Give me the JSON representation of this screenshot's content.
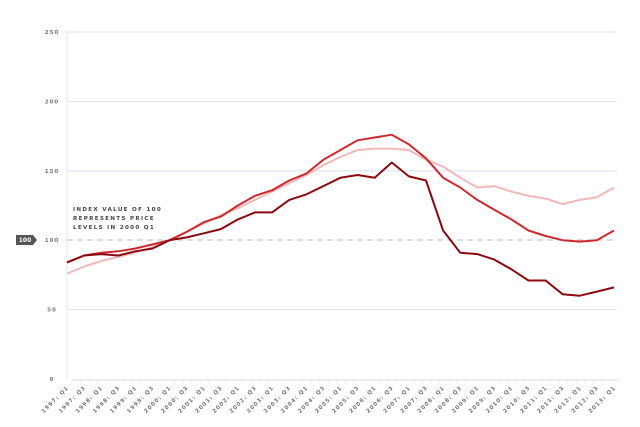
{
  "chart_data": {
    "type": "line",
    "title": "",
    "xlabel": "",
    "ylabel": "",
    "ylim": [
      0,
      250
    ],
    "yticks": [
      "0",
      "50",
      "100",
      "150",
      "200",
      "250"
    ],
    "grid": true,
    "x": [
      "1997: Q1",
      "1997: Q3",
      "1998: Q1",
      "1998: Q3",
      "1999: Q1",
      "1999: Q3",
      "2000: Q1",
      "2000: Q3",
      "2001: Q1",
      "2001: Q3",
      "2002: Q1",
      "2002: Q3",
      "2003: Q1",
      "2003: Q3",
      "2004: Q1",
      "2004: Q3",
      "2005: Q1",
      "2005: Q3",
      "2006: Q1",
      "2006: Q3",
      "2007: Q1",
      "2007: Q3",
      "2008: Q1",
      "2008: Q3",
      "2009: Q1",
      "2009: Q3",
      "2010: Q1",
      "2010: Q3",
      "2011: Q1",
      "2011: Q3",
      "2012: Q1",
      "2012: Q3",
      "2013: Q1"
    ],
    "series": [
      {
        "name": "light",
        "color": "#f2b8b8",
        "values": [
          76,
          81,
          85,
          88,
          91,
          95,
          100,
          106,
          112,
          118,
          123,
          129,
          135,
          141,
          147,
          154,
          160,
          165,
          166,
          166,
          165,
          158,
          153,
          145,
          138,
          139,
          135,
          132,
          130,
          126,
          129,
          131,
          138
        ]
      },
      {
        "name": "medium",
        "color": "#cc2a2e",
        "values": [
          84,
          89,
          91,
          92,
          94,
          97,
          100,
          106,
          113,
          117,
          125,
          132,
          136,
          143,
          148,
          158,
          165,
          172,
          174,
          176,
          169,
          159,
          145,
          138,
          129,
          122,
          115,
          107,
          103,
          100,
          99,
          100,
          107
        ]
      },
      {
        "name": "dark",
        "color": "#8a0a10",
        "values": [
          84,
          89,
          90,
          89,
          92,
          94,
          100,
          102,
          105,
          108,
          115,
          120,
          120,
          129,
          133,
          139,
          145,
          147,
          145,
          156,
          146,
          143,
          107,
          91,
          90,
          86,
          79,
          71,
          71,
          61,
          60,
          63,
          66
        ]
      }
    ],
    "reference_line": {
      "value": 100,
      "label": "100"
    },
    "annotation": [
      "INDEX VALUE OF 100",
      "REPRESENTS PRICE",
      "LEVELS IN 2000 Q1"
    ]
  }
}
